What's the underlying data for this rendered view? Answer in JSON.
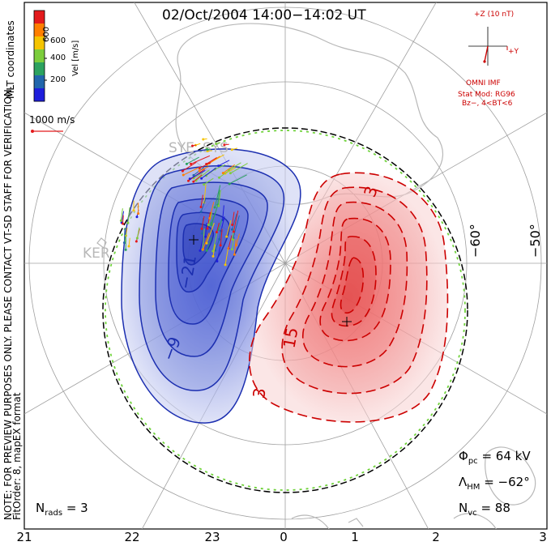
{
  "title": "02/Oct/2004 14:00−14:02 UT",
  "colorbar": {
    "label": "Vel [m/s]",
    "ticks": [
      "600",
      "400",
      "200"
    ],
    "colors": [
      "#e31a1c",
      "#ff7f00",
      "#f5c400",
      "#7ccd3c",
      "#2ca25f",
      "#2166ac",
      "#1e1edc"
    ]
  },
  "coordinates_note": "MLT coordinates",
  "vector_scale": "1000 m/s",
  "imf": {
    "z_label": "+Z (10 nT)",
    "y_label": "+Y",
    "source": "OMNI IMF",
    "model_line1": "Stat Mod: RG96",
    "model_line2": "Bz−, 4<BT<6"
  },
  "note_line1": "NOTE: FOR PREVIEW PURPOSES ONLY. PLEASE CONTACT VT-SD STAFF FOR VERIFICATION.",
  "note_line2": "FitOrder: 8, mapEX format",
  "stations": [
    "SYE",
    "SYS",
    "KER"
  ],
  "latitude_labels": [
    "−60°",
    "−50°"
  ],
  "contour_labels": {
    "negative": [
      "−21",
      "−9"
    ],
    "positive": [
      "3",
      "15",
      "3"
    ]
  },
  "stats": {
    "phi_pc_label": "Φ",
    "phi_pc_sub": "pc",
    "phi_pc_value": "= 64 kV",
    "lambda_hm_label": "Λ",
    "lambda_hm_sub": "HM",
    "lambda_hm_value": "= −62°",
    "nvc_label": "N",
    "nvc_sub": "vc",
    "nvc_value": "= 88",
    "nrads_label": "N",
    "nrads_sub": "rads",
    "nrads_value": "= 3"
  },
  "x_axis_ticks": [
    "21",
    "22",
    "23",
    "0",
    "1",
    "2",
    "3"
  ],
  "colors": {
    "negative_contour": "#1c2fb0",
    "positive_contour": "#cc0000",
    "hmb": "#6fd23a",
    "coastline": "#b8b8b8",
    "grid": "#9a9a9a"
  }
}
